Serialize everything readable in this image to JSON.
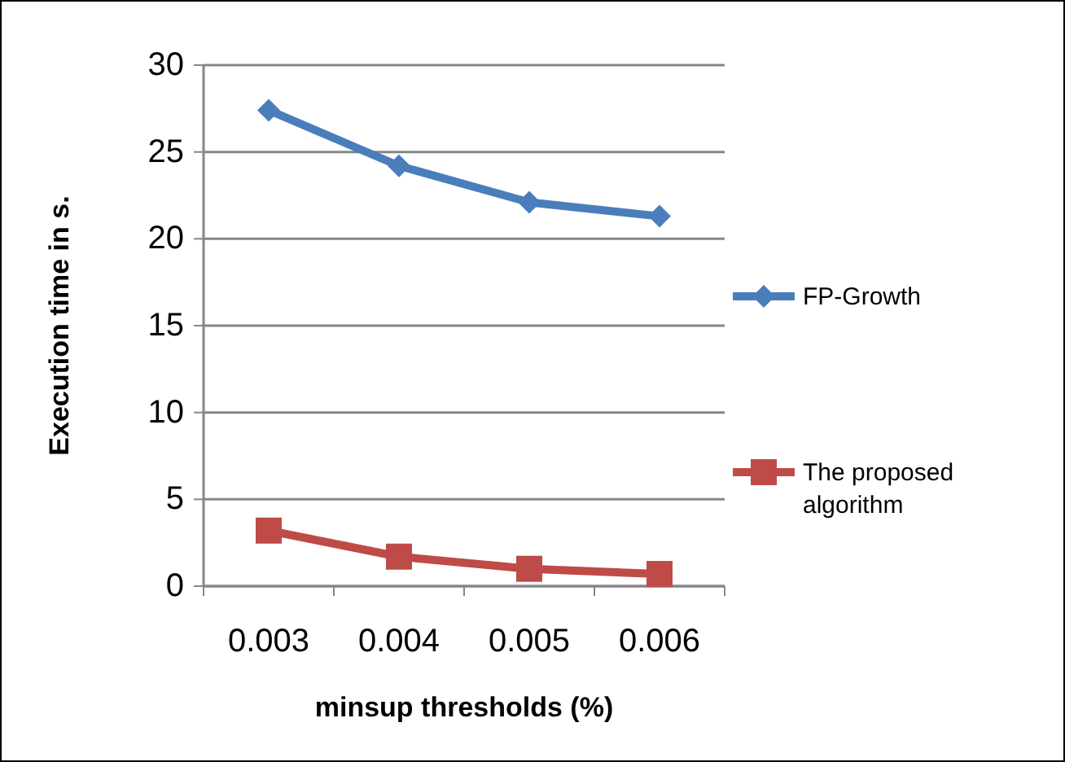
{
  "chart_data": {
    "type": "line",
    "xlabel": "minsup thresholds (%)",
    "ylabel": "Execution time in s.",
    "categories": [
      "0.003",
      "0.004",
      "0.005",
      "0.006"
    ],
    "series": [
      {
        "name": "FP-Growth",
        "color": "#4a7ebb",
        "values": [
          27.4,
          24.2,
          22.1,
          21.3
        ],
        "marker": "diamond"
      },
      {
        "name": "The proposed algorithm",
        "color": "#be4b48",
        "values": [
          3.2,
          1.7,
          1.0,
          0.7
        ],
        "marker": "square"
      }
    ],
    "ylim": [
      0,
      30
    ],
    "yticks": [
      0,
      5,
      10,
      15,
      20,
      25,
      30
    ],
    "grid": "y",
    "legend": "right"
  }
}
